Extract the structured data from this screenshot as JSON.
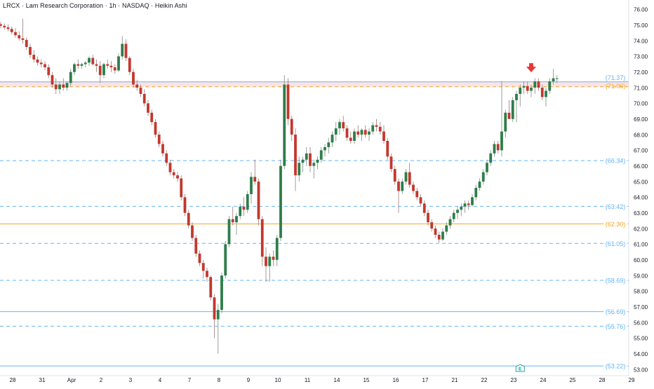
{
  "chart_title": "LRCX · Lam Research Corporation · 1h · NASDAQ · Heikin Ashi",
  "colors": {
    "up": "#2e7d4a",
    "down": "#c2382e",
    "level_blue": "#64b5f6",
    "level_orange": "#f5a623",
    "zone_fill": "#f9d9dc",
    "arrow": "#e53935",
    "grid_text": "#131722",
    "axis_line": "#e0e3eb"
  },
  "chart_data": {
    "type": "candlestick",
    "style": "Heikin Ashi",
    "symbol": "LRCX",
    "company": "Lam Research Corporation",
    "interval": "1h",
    "exchange": "NASDAQ",
    "y_axis": {
      "side": "right",
      "ylim": [
        52.6,
        76.6
      ],
      "ticks": [
        "53.00",
        "54.00",
        "55.00",
        "56.00",
        "57.00",
        "58.00",
        "59.00",
        "60.00",
        "61.00",
        "62.00",
        "63.00",
        "64.00",
        "65.00",
        "66.00",
        "67.00",
        "68.00",
        "69.00",
        "70.00",
        "71.00",
        "72.00",
        "73.00",
        "74.00",
        "75.00",
        "76.00"
      ]
    },
    "x_axis": {
      "tick_labels": [
        "28",
        "31",
        "Apr",
        "2",
        "3",
        "4",
        "7",
        "8",
        "9",
        "10",
        "11",
        "14",
        "15",
        "16",
        "17",
        "21",
        "22",
        "23",
        "24",
        "25",
        "28",
        "29"
      ],
      "tick_positions": [
        0,
        8,
        16,
        24,
        32,
        40,
        48,
        56,
        64,
        72,
        80,
        88,
        96,
        104,
        112,
        120,
        128,
        136,
        144,
        152,
        160,
        168
      ]
    },
    "levels": [
      {
        "price": 71.37,
        "label": "(71.37)",
        "color": "#64b5f6",
        "style": "solid"
      },
      {
        "price": 71.06,
        "label": "(71.06)",
        "color": "#f5a623",
        "style": "dashed"
      },
      {
        "price": 66.34,
        "label": "(66.34)",
        "color": "#64b5f6",
        "style": "dashed"
      },
      {
        "price": 63.42,
        "label": "(63.42)",
        "color": "#64b5f6",
        "style": "dashed"
      },
      {
        "price": 62.3,
        "label": "(62.30)",
        "color": "#f5a623",
        "style": "solid"
      },
      {
        "price": 61.05,
        "label": "(61.05)",
        "color": "#64b5f6",
        "style": "dashed"
      },
      {
        "price": 58.69,
        "label": "(58.69)",
        "color": "#64b5f6",
        "style": "dashed"
      },
      {
        "price": 56.69,
        "label": "(56.69)",
        "color": "#64b5f6",
        "style": "solid"
      },
      {
        "price": 55.76,
        "label": "(55.76)",
        "color": "#64b5f6",
        "style": "dashed"
      },
      {
        "price": 53.22,
        "label": "(53.22)",
        "color": "#64b5f6",
        "style": "solid"
      }
    ],
    "zone": {
      "from": 71.06,
      "to": 71.37
    },
    "arrow_marker": {
      "bar_index": 144,
      "price": 72.25
    },
    "earnings_marker": {
      "bar_index": 141,
      "text": "E"
    },
    "candles": [
      [
        75.05,
        75.2,
        74.8,
        74.95
      ],
      [
        74.95,
        75.1,
        74.7,
        74.85
      ],
      [
        74.85,
        75.05,
        74.6,
        74.75
      ],
      [
        74.75,
        74.9,
        74.4,
        74.55
      ],
      [
        74.55,
        74.8,
        74.2,
        74.35
      ],
      [
        74.35,
        74.6,
        74.0,
        74.15
      ],
      [
        74.15,
        75.4,
        73.8,
        74.05
      ],
      [
        74.05,
        74.2,
        73.4,
        73.6
      ],
      [
        73.6,
        73.8,
        72.9,
        73.1
      ],
      [
        73.1,
        73.4,
        72.6,
        72.8
      ],
      [
        72.8,
        73.0,
        72.4,
        72.6
      ],
      [
        72.6,
        72.8,
        72.3,
        72.5
      ],
      [
        72.5,
        72.7,
        72.1,
        72.3
      ],
      [
        72.3,
        72.5,
        71.6,
        71.8
      ],
      [
        71.8,
        72.0,
        71.0,
        71.2
      ],
      [
        71.2,
        71.6,
        70.6,
        70.9
      ],
      [
        70.9,
        71.4,
        70.6,
        71.2
      ],
      [
        71.2,
        71.6,
        70.8,
        71.0
      ],
      [
        71.0,
        71.4,
        70.8,
        71.3
      ],
      [
        71.3,
        72.2,
        71.1,
        72.0
      ],
      [
        72.0,
        72.6,
        71.8,
        72.5
      ],
      [
        72.5,
        72.8,
        72.2,
        72.4
      ],
      [
        72.4,
        72.6,
        72.2,
        72.5
      ],
      [
        72.5,
        72.7,
        72.3,
        72.6
      ],
      [
        72.6,
        73.0,
        72.4,
        72.9
      ],
      [
        72.9,
        73.1,
        72.4,
        72.5
      ],
      [
        72.5,
        72.8,
        72.0,
        72.4
      ],
      [
        72.4,
        72.7,
        71.3,
        71.8
      ],
      [
        71.8,
        72.6,
        71.6,
        72.5
      ],
      [
        72.5,
        72.8,
        72.2,
        72.4
      ],
      [
        72.4,
        72.7,
        72.0,
        72.3
      ],
      [
        72.3,
        72.5,
        71.9,
        72.1
      ],
      [
        72.1,
        73.2,
        72.0,
        73.0
      ],
      [
        73.0,
        74.3,
        72.8,
        73.8
      ],
      [
        73.8,
        74.1,
        72.7,
        72.9
      ],
      [
        72.9,
        73.0,
        71.8,
        72.0
      ],
      [
        72.0,
        72.2,
        71.0,
        71.2
      ],
      [
        71.2,
        71.5,
        70.8,
        71.0
      ],
      [
        71.0,
        71.2,
        70.4,
        70.6
      ],
      [
        70.6,
        70.9,
        69.8,
        70.0
      ],
      [
        70.0,
        70.2,
        69.2,
        69.4
      ],
      [
        69.4,
        69.6,
        68.6,
        68.8
      ],
      [
        68.8,
        69.0,
        67.8,
        68.0
      ],
      [
        68.0,
        68.2,
        67.2,
        67.4
      ],
      [
        67.4,
        67.6,
        66.6,
        66.8
      ],
      [
        66.8,
        67.0,
        66.0,
        66.2
      ],
      [
        66.2,
        66.4,
        65.4,
        65.6
      ],
      [
        65.6,
        65.8,
        65.2,
        65.4
      ],
      [
        65.4,
        65.6,
        65.0,
        65.2
      ],
      [
        65.2,
        65.4,
        63.8,
        64.0
      ],
      [
        64.0,
        64.2,
        62.8,
        63.0
      ],
      [
        63.0,
        63.2,
        62.0,
        62.2
      ],
      [
        62.2,
        62.4,
        61.2,
        61.4
      ],
      [
        61.4,
        61.6,
        60.2,
        60.4
      ],
      [
        60.4,
        60.6,
        59.6,
        59.8
      ],
      [
        59.8,
        60.0,
        58.8,
        59.3
      ],
      [
        59.3,
        59.5,
        58.6,
        58.9
      ],
      [
        58.9,
        59.0,
        57.4,
        57.6
      ],
      [
        57.6,
        57.8,
        55.0,
        56.2
      ],
      [
        56.2,
        57.2,
        54.0,
        56.8
      ],
      [
        56.8,
        59.2,
        56.6,
        59.0
      ],
      [
        59.0,
        61.2,
        58.8,
        61.0
      ],
      [
        61.0,
        62.8,
        60.8,
        62.6
      ],
      [
        62.6,
        63.4,
        62.2,
        62.4
      ],
      [
        62.4,
        63.0,
        61.6,
        62.8
      ],
      [
        62.8,
        63.6,
        62.6,
        63.4
      ],
      [
        63.4,
        64.0,
        62.8,
        63.2
      ],
      [
        63.2,
        64.4,
        63.0,
        64.2
      ],
      [
        64.2,
        65.6,
        63.6,
        65.3
      ],
      [
        65.3,
        66.4,
        64.8,
        65.0
      ],
      [
        65.0,
        65.2,
        62.2,
        62.6
      ],
      [
        62.6,
        62.8,
        59.6,
        60.2
      ],
      [
        60.2,
        60.8,
        58.6,
        59.6
      ],
      [
        59.6,
        60.4,
        58.6,
        60.2
      ],
      [
        60.2,
        60.6,
        59.6,
        60.0
      ],
      [
        60.0,
        61.6,
        59.6,
        61.4
      ],
      [
        61.4,
        66.4,
        61.2,
        66.0
      ],
      [
        66.0,
        71.8,
        65.8,
        71.2
      ],
      [
        71.2,
        71.6,
        68.6,
        69.0
      ],
      [
        69.0,
        69.2,
        67.6,
        68.0
      ],
      [
        68.0,
        68.4,
        64.4,
        65.4
      ],
      [
        65.4,
        66.6,
        65.0,
        66.2
      ],
      [
        66.2,
        66.6,
        65.6,
        66.4
      ],
      [
        66.4,
        67.2,
        66.0,
        66.8
      ],
      [
        66.8,
        67.2,
        65.6,
        66.0
      ],
      [
        66.0,
        66.4,
        65.2,
        66.2
      ],
      [
        66.2,
        66.6,
        65.8,
        66.4
      ],
      [
        66.4,
        67.2,
        66.2,
        67.0
      ],
      [
        67.0,
        67.4,
        66.6,
        67.2
      ],
      [
        67.2,
        67.8,
        66.8,
        67.5
      ],
      [
        67.5,
        68.2,
        67.2,
        68.0
      ],
      [
        68.0,
        68.8,
        67.6,
        68.4
      ],
      [
        68.4,
        69.0,
        68.0,
        68.8
      ],
      [
        68.8,
        69.2,
        68.2,
        68.4
      ],
      [
        68.4,
        68.6,
        67.6,
        67.8
      ],
      [
        67.8,
        68.2,
        67.4,
        67.6
      ],
      [
        67.6,
        68.4,
        67.4,
        68.2
      ],
      [
        68.2,
        68.6,
        67.8,
        68.0
      ],
      [
        68.0,
        68.4,
        67.6,
        68.3
      ],
      [
        68.3,
        68.6,
        67.8,
        68.0
      ],
      [
        68.0,
        68.4,
        67.6,
        68.2
      ],
      [
        68.2,
        68.8,
        68.0,
        68.6
      ],
      [
        68.6,
        69.0,
        68.2,
        68.5
      ],
      [
        68.5,
        68.8,
        68.0,
        68.2
      ],
      [
        68.2,
        68.6,
        67.4,
        67.6
      ],
      [
        67.6,
        67.8,
        66.4,
        66.6
      ],
      [
        66.6,
        66.8,
        65.6,
        65.8
      ],
      [
        65.8,
        66.0,
        64.8,
        65.0
      ],
      [
        65.0,
        65.2,
        63.0,
        64.4
      ],
      [
        64.4,
        65.2,
        64.2,
        65.0
      ],
      [
        65.0,
        65.8,
        64.8,
        65.6
      ],
      [
        65.6,
        66.2,
        64.6,
        64.8
      ],
      [
        64.8,
        65.0,
        64.2,
        64.4
      ],
      [
        64.4,
        64.6,
        63.8,
        64.0
      ],
      [
        64.0,
        64.2,
        63.4,
        63.6
      ],
      [
        63.6,
        63.8,
        62.8,
        63.0
      ],
      [
        63.0,
        63.2,
        62.2,
        62.4
      ],
      [
        62.4,
        62.6,
        61.8,
        62.0
      ],
      [
        62.0,
        62.2,
        61.4,
        61.6
      ],
      [
        61.6,
        61.8,
        61.1,
        61.3
      ],
      [
        61.3,
        62.0,
        61.2,
        61.8
      ],
      [
        61.8,
        62.4,
        61.6,
        62.2
      ],
      [
        62.2,
        62.8,
        62.0,
        62.6
      ],
      [
        62.6,
        63.2,
        62.4,
        63.0
      ],
      [
        63.0,
        63.4,
        62.6,
        63.2
      ],
      [
        63.2,
        63.6,
        62.8,
        63.4
      ],
      [
        63.4,
        63.8,
        63.0,
        63.6
      ],
      [
        63.6,
        63.8,
        63.2,
        63.5
      ],
      [
        63.5,
        64.2,
        63.4,
        64.0
      ],
      [
        64.0,
        64.8,
        63.8,
        64.6
      ],
      [
        64.6,
        65.2,
        64.4,
        65.0
      ],
      [
        65.0,
        65.8,
        64.8,
        65.6
      ],
      [
        65.6,
        66.4,
        65.4,
        66.2
      ],
      [
        66.2,
        67.0,
        66.0,
        66.8
      ],
      [
        66.8,
        67.6,
        66.6,
        67.4
      ],
      [
        67.4,
        67.6,
        66.8,
        67.0
      ],
      [
        67.0,
        71.4,
        66.6,
        68.2
      ],
      [
        68.2,
        69.6,
        67.8,
        69.4
      ],
      [
        69.4,
        70.2,
        69.0,
        69.0
      ],
      [
        69.0,
        70.4,
        68.8,
        70.2
      ],
      [
        70.2,
        70.8,
        68.8,
        70.6
      ],
      [
        70.6,
        71.2,
        69.8,
        71.0
      ],
      [
        71.0,
        71.4,
        70.6,
        71.1
      ],
      [
        71.1,
        71.4,
        70.6,
        70.8
      ],
      [
        70.8,
        71.2,
        70.4,
        71.0
      ],
      [
        71.0,
        71.6,
        70.6,
        71.4
      ],
      [
        71.4,
        71.6,
        70.8,
        71.0
      ],
      [
        71.0,
        71.2,
        70.2,
        70.4
      ],
      [
        70.4,
        71.0,
        69.8,
        70.8
      ],
      [
        70.8,
        71.6,
        70.6,
        71.4
      ],
      [
        71.4,
        72.2,
        71.2,
        71.6
      ],
      [
        71.6,
        71.8,
        71.3,
        71.6
      ]
    ]
  }
}
